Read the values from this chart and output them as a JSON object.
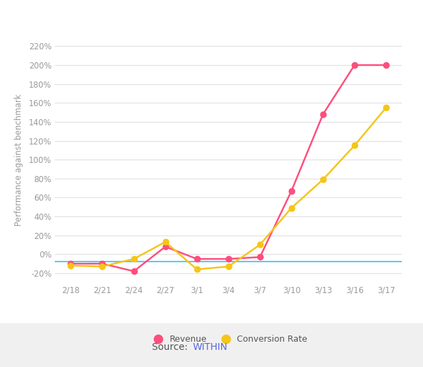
{
  "x_labels": [
    "2/18",
    "2/21",
    "2/24",
    "2/27",
    "3/1",
    "3/4",
    "3/7",
    "3/10",
    "3/13",
    "3/16",
    "3/17"
  ],
  "revenue": [
    -10,
    -10,
    -18,
    8,
    -5,
    -5,
    -3,
    67,
    148,
    200,
    200
  ],
  "conversion_rate": [
    -12,
    -13,
    -5,
    13,
    -16,
    -13,
    10,
    49,
    79,
    115,
    155
  ],
  "revenue_color": "#FF4D7D",
  "conversion_color": "#F5C518",
  "benchmark_color": "#5BC8F5",
  "ylabel": "Performance against benchmark",
  "ylim_min": -30,
  "ylim_max": 230,
  "yticks": [
    -20,
    0,
    20,
    40,
    60,
    80,
    100,
    120,
    140,
    160,
    180,
    200,
    220
  ],
  "background_color": "#f0f0f0",
  "card_color": "#ffffff",
  "legend_revenue": "Revenue",
  "legend_conversion": "Conversion Rate",
  "source_text": "Source: ",
  "source_link": "WITHIN",
  "source_color": "#5566DD",
  "source_text_color": "#555555",
  "marker_size": 6,
  "line_width": 1.8,
  "tick_color": "#999999",
  "grid_color": "#e0e0e0"
}
